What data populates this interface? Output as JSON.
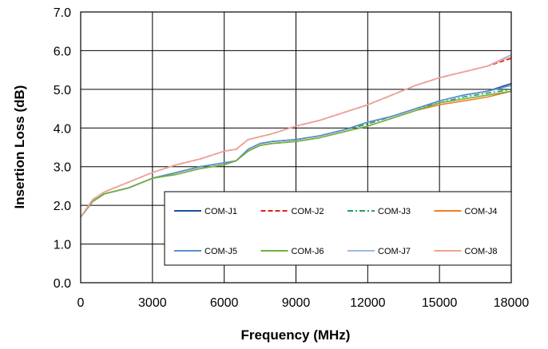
{
  "chart_data": {
    "type": "line",
    "title": "",
    "xlabel": "Frequency (MHz)",
    "ylabel": "Insertion Loss (dB)",
    "xlim": [
      0,
      18000
    ],
    "ylim": [
      0,
      7
    ],
    "x_ticks": [
      "0",
      "3000",
      "6000",
      "9000",
      "12000",
      "15000",
      "18000"
    ],
    "y_ticks": [
      "0.0",
      "1.0",
      "2.0",
      "3.0",
      "4.0",
      "5.0",
      "6.0",
      "7.0"
    ],
    "grid": true,
    "legend_position": "inside-bottom-right",
    "series": [
      {
        "name": "COM-J1",
        "color": "#1f4e9e",
        "dash": "solid",
        "x": [
          0,
          500,
          1000,
          2000,
          3000,
          4000,
          5000,
          6000,
          6500,
          7000,
          7500,
          8000,
          9000,
          10000,
          11000,
          12000,
          13000,
          14000,
          15000,
          16000,
          17000,
          18000
        ],
        "y": [
          1.7,
          2.1,
          2.3,
          2.45,
          2.7,
          2.85,
          3.0,
          3.1,
          3.15,
          3.45,
          3.6,
          3.65,
          3.7,
          3.8,
          3.95,
          4.15,
          4.3,
          4.5,
          4.7,
          4.85,
          4.95,
          5.15
        ]
      },
      {
        "name": "COM-J2",
        "color": "#e02020",
        "dash": "dashed",
        "x": [
          0,
          500,
          1000,
          2000,
          3000,
          4000,
          5000,
          6000,
          6500,
          7000,
          8000,
          9000,
          10000,
          11000,
          12000,
          13000,
          14000,
          15000,
          16000,
          17000,
          18000
        ],
        "y": [
          1.7,
          2.15,
          2.35,
          2.6,
          2.85,
          3.05,
          3.2,
          3.4,
          3.45,
          3.7,
          3.85,
          4.05,
          4.2,
          4.4,
          4.6,
          4.85,
          5.1,
          5.3,
          5.45,
          5.6,
          5.8
        ]
      },
      {
        "name": "COM-J3",
        "color": "#20a060",
        "dash": "dashdot",
        "x": [
          0,
          500,
          1000,
          2000,
          3000,
          4000,
          5000,
          6000,
          6500,
          7000,
          7500,
          8000,
          9000,
          10000,
          11000,
          12000,
          13000,
          14000,
          15000,
          16000,
          17000,
          18000
        ],
        "y": [
          1.7,
          2.1,
          2.3,
          2.45,
          2.7,
          2.85,
          3.0,
          3.1,
          3.15,
          3.45,
          3.6,
          3.65,
          3.7,
          3.8,
          3.95,
          4.1,
          4.3,
          4.5,
          4.65,
          4.8,
          4.9,
          5.0
        ]
      },
      {
        "name": "COM-J4",
        "color": "#f08020",
        "dash": "solid",
        "x": [
          0,
          500,
          1000,
          2000,
          3000,
          4000,
          5000,
          6000,
          6500,
          7000,
          7500,
          8000,
          9000,
          10000,
          11000,
          12000,
          13000,
          14000,
          15000,
          16000,
          17000,
          18000
        ],
        "y": [
          1.7,
          2.1,
          2.3,
          2.45,
          2.7,
          2.8,
          2.95,
          3.05,
          3.15,
          3.4,
          3.55,
          3.6,
          3.65,
          3.75,
          3.9,
          4.05,
          4.25,
          4.45,
          4.6,
          4.7,
          4.8,
          4.95
        ]
      },
      {
        "name": "COM-J5",
        "color": "#5b8fd0",
        "dash": "solid",
        "x": [
          0,
          500,
          1000,
          2000,
          3000,
          4000,
          5000,
          6000,
          6500,
          7000,
          7500,
          8000,
          9000,
          10000,
          11000,
          12000,
          13000,
          14000,
          15000,
          16000,
          17000,
          18000
        ],
        "y": [
          1.7,
          2.1,
          2.3,
          2.45,
          2.7,
          2.85,
          3.0,
          3.1,
          3.15,
          3.45,
          3.6,
          3.65,
          3.7,
          3.8,
          3.95,
          4.15,
          4.3,
          4.5,
          4.7,
          4.85,
          4.95,
          5.1
        ]
      },
      {
        "name": "COM-J6",
        "color": "#70b040",
        "dash": "solid",
        "x": [
          0,
          500,
          1000,
          2000,
          3000,
          4000,
          5000,
          6000,
          6500,
          7000,
          7500,
          8000,
          9000,
          10000,
          11000,
          12000,
          13000,
          14000,
          15000,
          16000,
          17000,
          18000
        ],
        "y": [
          1.7,
          2.1,
          2.3,
          2.45,
          2.7,
          2.8,
          2.95,
          3.05,
          3.15,
          3.4,
          3.55,
          3.6,
          3.65,
          3.75,
          3.9,
          4.05,
          4.25,
          4.45,
          4.65,
          4.75,
          4.85,
          4.95
        ]
      },
      {
        "name": "COM-J7",
        "color": "#a0b8e8",
        "dash": "solid",
        "x": [
          0,
          500,
          1000,
          2000,
          3000,
          4000,
          5000,
          6000,
          6500,
          7000,
          8000,
          9000,
          10000,
          11000,
          12000,
          13000,
          14000,
          15000,
          16000,
          17000,
          18000
        ],
        "y": [
          1.7,
          2.15,
          2.35,
          2.6,
          2.85,
          3.05,
          3.2,
          3.4,
          3.45,
          3.7,
          3.85,
          4.05,
          4.2,
          4.4,
          4.6,
          4.85,
          5.1,
          5.3,
          5.45,
          5.6,
          5.9
        ]
      },
      {
        "name": "COM-J8",
        "color": "#f4a090",
        "dash": "solid",
        "x": [
          0,
          500,
          1000,
          2000,
          3000,
          4000,
          5000,
          6000,
          6500,
          7000,
          8000,
          9000,
          10000,
          11000,
          12000,
          13000,
          14000,
          15000,
          16000,
          17000,
          18000
        ],
        "y": [
          1.7,
          2.15,
          2.35,
          2.6,
          2.85,
          3.05,
          3.2,
          3.4,
          3.45,
          3.7,
          3.85,
          4.05,
          4.2,
          4.4,
          4.6,
          4.85,
          5.1,
          5.3,
          5.45,
          5.6,
          5.85
        ]
      }
    ]
  }
}
